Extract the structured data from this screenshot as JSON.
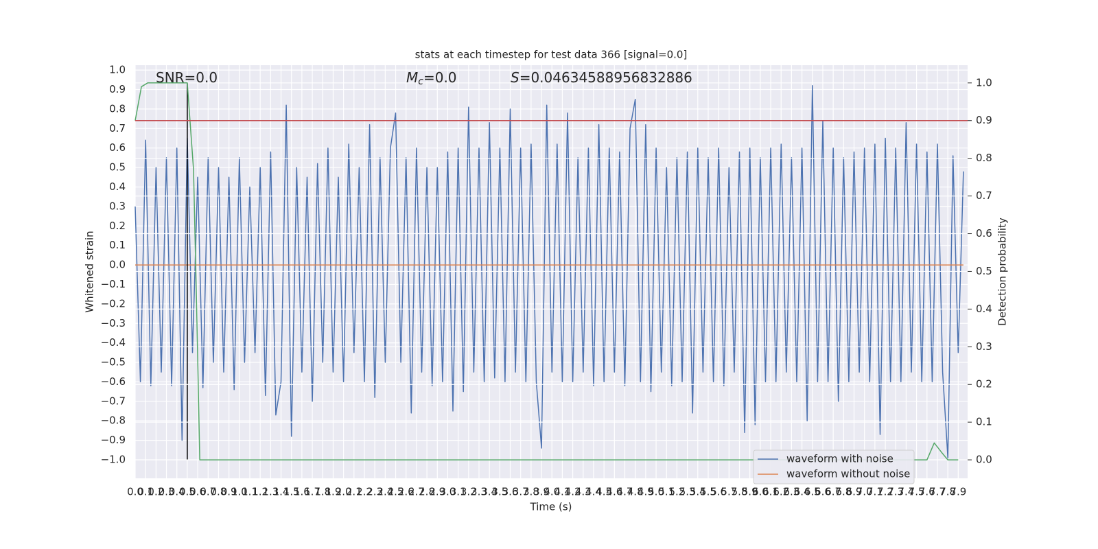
{
  "chart_data": {
    "type": "line",
    "title": "stats at each timestep for test data 366 [signal=0.0]",
    "xlabel": "Time (s)",
    "ylabel": "Whitened strain",
    "y2label": "Detection probability",
    "annotations": [
      {
        "text": "SNR=0.0"
      },
      {
        "symbol": "M",
        "subscript": "c",
        "text": "=0.0"
      },
      {
        "symbol": "S",
        "text": "=0.04634588956832886"
      }
    ],
    "xlim": [
      0,
      7.99
    ],
    "ylim": [
      -1.095,
      1.025
    ],
    "y2lim": [
      -0.049,
      1.047
    ],
    "xticks": [
      {
        "value": 0,
        "label": "0.0"
      },
      0.1,
      0.2,
      0.3,
      0.4,
      0.5,
      0.6,
      0.7,
      0.8,
      0.9,
      {
        "value": 1,
        "label": "1.0"
      },
      1.1,
      1.2,
      1.3,
      1.4,
      1.5,
      1.6,
      1.7,
      1.8,
      1.9,
      {
        "value": 2,
        "label": "2.0"
      },
      2.1,
      2.2,
      2.3,
      2.4,
      2.5,
      2.6,
      2.7,
      2.8,
      2.9,
      {
        "value": 3,
        "label": "3.0"
      },
      3.1,
      3.2,
      3.3,
      3.4,
      3.5,
      3.6,
      3.7,
      3.8,
      3.9,
      {
        "value": 4,
        "label": "4.0"
      },
      4.1,
      4.2,
      4.3,
      4.4,
      4.5,
      4.6,
      4.7,
      4.8,
      4.9,
      {
        "value": 5,
        "label": "5.0"
      },
      5.1,
      5.2,
      5.3,
      5.4,
      5.5,
      5.6,
      5.7,
      5.8,
      5.9,
      {
        "value": 6,
        "label": "6.0"
      },
      6.1,
      6.2,
      6.3,
      6.4,
      6.5,
      6.6,
      6.7,
      6.8,
      6.9,
      {
        "value": 7,
        "label": "7.0"
      },
      7.1,
      7.2,
      7.3,
      7.4,
      7.5,
      7.6,
      7.7,
      7.8,
      7.9
    ],
    "yticks": [
      {
        "value": -1.0,
        "label": "−1.0"
      },
      {
        "value": -0.9,
        "label": "−0.9"
      },
      {
        "value": -0.8,
        "label": "−0.8"
      },
      {
        "value": -0.7,
        "label": "−0.7"
      },
      {
        "value": -0.6,
        "label": "−0.6"
      },
      {
        "value": -0.5,
        "label": "−0.5"
      },
      {
        "value": -0.4,
        "label": "−0.4"
      },
      {
        "value": -0.3,
        "label": "−0.3"
      },
      {
        "value": -0.2,
        "label": "−0.2"
      },
      {
        "value": -0.1,
        "label": "−0.1"
      },
      {
        "value": 0,
        "label": "0.0"
      },
      0.1,
      0.2,
      0.3,
      0.4,
      0.5,
      0.6,
      0.7,
      0.8,
      0.9,
      {
        "value": 1,
        "label": "1.0"
      }
    ],
    "y2ticks": [
      {
        "value": 0,
        "label": "0.0"
      },
      0.1,
      0.2,
      0.3,
      0.4,
      0.5,
      0.6,
      0.7,
      0.8,
      0.9,
      {
        "value": 1,
        "label": "1.0"
      }
    ],
    "grid": true,
    "legend": "lower right",
    "series": [
      {
        "name": "waveform with noise",
        "color": "#4c72b0",
        "x": [
          0,
          0.05,
          0.1,
          0.15,
          0.2,
          0.25,
          0.3,
          0.35,
          0.4,
          0.45,
          0.5,
          0.55,
          0.6,
          0.65,
          0.7,
          0.75,
          0.8,
          0.85,
          0.9,
          0.95,
          1.0,
          1.05,
          1.1,
          1.15,
          1.2,
          1.25,
          1.3,
          1.35,
          1.4,
          1.45,
          1.5,
          1.55,
          1.6,
          1.65,
          1.7,
          1.75,
          1.8,
          1.85,
          1.9,
          1.95,
          2.0,
          2.05,
          2.1,
          2.15,
          2.2,
          2.25,
          2.3,
          2.35,
          2.4,
          2.45,
          2.5,
          2.55,
          2.6,
          2.65,
          2.7,
          2.75,
          2.8,
          2.85,
          2.9,
          2.95,
          3.0,
          3.05,
          3.1,
          3.15,
          3.2,
          3.25,
          3.3,
          3.35,
          3.4,
          3.45,
          3.5,
          3.55,
          3.6,
          3.65,
          3.7,
          3.75,
          3.8,
          3.85,
          3.9,
          3.95,
          4.0,
          4.05,
          4.1,
          4.15,
          4.2,
          4.25,
          4.3,
          4.35,
          4.4,
          4.45,
          4.5,
          4.55,
          4.6,
          4.65,
          4.7,
          4.75,
          4.8,
          4.85,
          4.9,
          4.95,
          5.0,
          5.05,
          5.1,
          5.15,
          5.2,
          5.25,
          5.3,
          5.35,
          5.4,
          5.45,
          5.5,
          5.55,
          5.6,
          5.65,
          5.7,
          5.75,
          5.8,
          5.85,
          5.9,
          5.95,
          6.0,
          6.05,
          6.1,
          6.15,
          6.2,
          6.25,
          6.3,
          6.35,
          6.4,
          6.45,
          6.5,
          6.55,
          6.6,
          6.65,
          6.7,
          6.75,
          6.8,
          6.85,
          6.9,
          6.95,
          7.0,
          7.05,
          7.1,
          7.15,
          7.2,
          7.25,
          7.3,
          7.35,
          7.4,
          7.45,
          7.5,
          7.55,
          7.6,
          7.65,
          7.7,
          7.75,
          7.8,
          7.85,
          7.9,
          7.95
        ],
        "values": [
          0.3,
          -0.6,
          0.64,
          -0.62,
          0.5,
          -0.55,
          0.55,
          -0.62,
          0.6,
          -0.9,
          0.65,
          -0.45,
          0.45,
          -0.63,
          0.55,
          -0.5,
          0.5,
          -0.55,
          0.45,
          -0.64,
          0.55,
          -0.5,
          0.4,
          -0.45,
          0.5,
          -0.67,
          0.58,
          -0.77,
          -0.6,
          0.82,
          -0.88,
          0.5,
          -0.55,
          0.45,
          -0.7,
          0.52,
          -0.5,
          0.6,
          -0.55,
          0.45,
          -0.6,
          0.62,
          -0.45,
          0.5,
          -0.6,
          0.72,
          -0.68,
          0.55,
          -0.5,
          0.6,
          0.78,
          -0.5,
          0.55,
          -0.76,
          0.6,
          -0.55,
          0.5,
          -0.62,
          0.5,
          -0.6,
          0.58,
          -0.75,
          0.6,
          -0.65,
          0.81,
          -0.55,
          0.6,
          -0.6,
          0.73,
          -0.58,
          0.6,
          -0.6,
          0.8,
          -0.55,
          0.6,
          -0.6,
          0.62,
          -0.6,
          -0.94,
          0.82,
          -0.55,
          0.62,
          -0.6,
          0.78,
          -0.6,
          0.55,
          -0.55,
          0.6,
          -0.62,
          0.72,
          -0.6,
          0.6,
          -0.55,
          0.58,
          -0.62,
          0.7,
          0.85,
          -0.6,
          0.72,
          -0.65,
          0.6,
          -0.55,
          0.5,
          -0.62,
          0.55,
          -0.6,
          0.58,
          -0.76,
          0.6,
          -0.55,
          0.55,
          -0.6,
          0.6,
          -0.62,
          0.5,
          -0.55,
          0.58,
          -0.86,
          0.6,
          -0.82,
          0.55,
          -0.6,
          0.6,
          -0.6,
          0.62,
          -0.55,
          0.55,
          -0.6,
          0.6,
          -0.8,
          0.92,
          -0.6,
          0.74,
          -0.6,
          0.6,
          -0.7,
          0.55,
          -0.6,
          0.58,
          -0.55,
          0.6,
          -0.6,
          0.62,
          -0.87,
          0.65,
          -0.6,
          0.6,
          -0.6,
          0.73,
          -0.55,
          0.62,
          -0.6,
          0.58,
          -0.6,
          0.62,
          -0.55,
          -0.99,
          0.56,
          -0.45,
          0.48
        ]
      },
      {
        "name": "waveform without noise",
        "color": "#dd8452",
        "x": [
          0,
          7.95
        ],
        "values": [
          0,
          0
        ]
      },
      {
        "color": "#55a868",
        "axis": "y2",
        "x": [
          0,
          0.06,
          0.12,
          0.5,
          0.56,
          0.59,
          0.62,
          7.6,
          7.67,
          7.74,
          7.8,
          7.9
        ],
        "values": [
          0.9,
          0.99,
          1.0,
          1.0,
          0.77,
          0.4,
          0.0,
          0.0,
          0.045,
          0.02,
          0.0,
          0.0
        ]
      }
    ],
    "hlines": [
      {
        "y": 0.9,
        "axis": "y2",
        "color": "#c44e52"
      }
    ],
    "vlines": [
      {
        "x": 0.5,
        "ymin": -1.0,
        "ymax": 0.933,
        "color": "#000000"
      }
    ]
  }
}
